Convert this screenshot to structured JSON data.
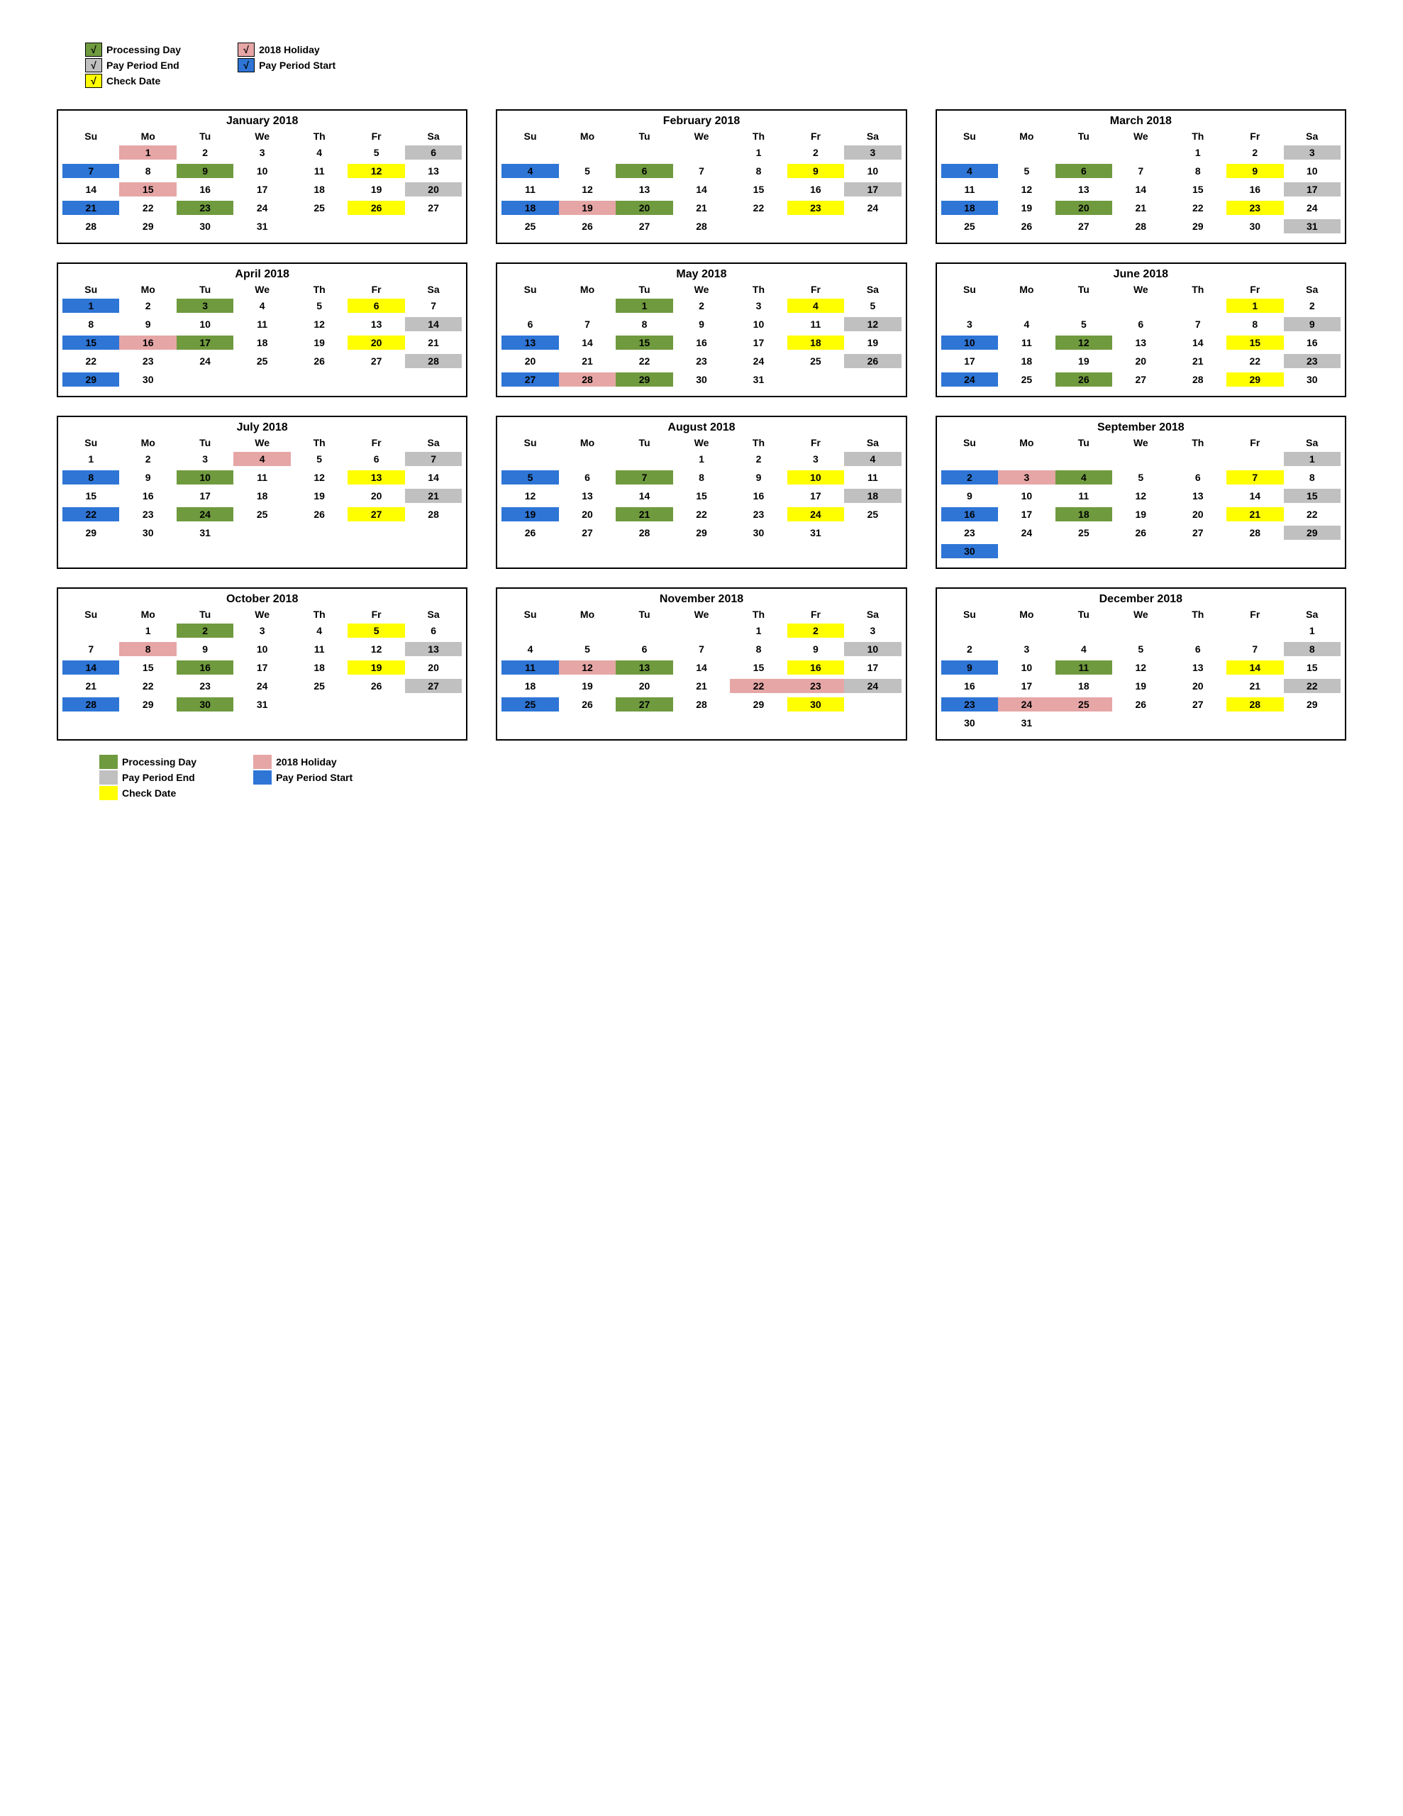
{
  "colors": {
    "processing": "#6f9a3e",
    "periodEnd": "#c0c0c0",
    "checkDate": "#ffff00",
    "holiday": "#e6a6a6",
    "periodStart": "#2e75d6",
    "text": "#000000"
  },
  "legendTop": {
    "col1": [
      {
        "label": "Processing Day",
        "colorKey": "processing",
        "check": "√"
      },
      {
        "label": "Pay Period End",
        "colorKey": "periodEnd",
        "check": "√"
      },
      {
        "label": "Check Date",
        "colorKey": "checkDate",
        "check": "√"
      }
    ],
    "col2": [
      {
        "label": "2018 Holiday",
        "colorKey": "holiday",
        "check": "√"
      },
      {
        "label": "Pay Period Start",
        "colorKey": "periodStart",
        "check": "√"
      }
    ]
  },
  "legendBottom": {
    "col1": [
      {
        "label": "Processing Day",
        "colorKey": "processing"
      },
      {
        "label": "Pay Period End",
        "colorKey": "periodEnd"
      },
      {
        "label": "Check Date",
        "colorKey": "checkDate"
      }
    ],
    "col2": [
      {
        "label": "2018 Holiday",
        "colorKey": "holiday"
      },
      {
        "label": "Pay Period Start",
        "colorKey": "periodStart"
      }
    ]
  },
  "weekdays": [
    "Su",
    "Mo",
    "Tu",
    "We",
    "Th",
    "Fr",
    "Sa"
  ],
  "months": [
    {
      "title": "January 2018",
      "start": 1,
      "days": 31,
      "colors": {
        "1": "holiday",
        "6": "periodEnd",
        "7": "periodStart",
        "9": "processing",
        "12": "checkDate",
        "15": "holiday",
        "20": "periodEnd",
        "21": "periodStart",
        "23": "processing",
        "26": "checkDate"
      }
    },
    {
      "title": "February 2018",
      "start": 4,
      "days": 28,
      "colors": {
        "3": "periodEnd",
        "4": "periodStart",
        "6": "processing",
        "9": "checkDate",
        "17": "periodEnd",
        "18": "periodStart",
        "19": "holiday",
        "20": "processing",
        "23": "checkDate"
      }
    },
    {
      "title": "March 2018",
      "start": 4,
      "days": 31,
      "colors": {
        "3": "periodEnd",
        "4": "periodStart",
        "6": "processing",
        "9": "checkDate",
        "17": "periodEnd",
        "18": "periodStart",
        "20": "processing",
        "23": "checkDate",
        "31": "periodEnd"
      }
    },
    {
      "title": "April 2018",
      "start": 0,
      "days": 30,
      "colors": {
        "1": "periodStart",
        "3": "processing",
        "6": "checkDate",
        "14": "periodEnd",
        "15": "periodStart",
        "16": "holiday",
        "17": "processing",
        "20": "checkDate",
        "28": "periodEnd",
        "29": "periodStart"
      }
    },
    {
      "title": "May 2018",
      "start": 2,
      "days": 31,
      "colors": {
        "1": "processing",
        "4": "checkDate",
        "12": "periodEnd",
        "13": "periodStart",
        "15": "processing",
        "18": "checkDate",
        "26": "periodEnd",
        "27": "periodStart",
        "28": "holiday",
        "29": "processing"
      }
    },
    {
      "title": "June 2018",
      "start": 5,
      "days": 30,
      "colors": {
        "1": "checkDate",
        "9": "periodEnd",
        "10": "periodStart",
        "12": "processing",
        "15": "checkDate",
        "23": "periodEnd",
        "24": "periodStart",
        "26": "processing",
        "29": "checkDate"
      }
    },
    {
      "title": "July 2018",
      "start": 0,
      "days": 31,
      "colors": {
        "4": "holiday",
        "7": "periodEnd",
        "8": "periodStart",
        "10": "processing",
        "13": "checkDate",
        "21": "periodEnd",
        "22": "periodStart",
        "24": "processing",
        "27": "checkDate"
      }
    },
    {
      "title": "August 2018",
      "start": 3,
      "days": 31,
      "colors": {
        "4": "periodEnd",
        "5": "periodStart",
        "7": "processing",
        "10": "checkDate",
        "18": "periodEnd",
        "19": "periodStart",
        "21": "processing",
        "24": "checkDate"
      }
    },
    {
      "title": "September 2018",
      "start": 6,
      "days": 30,
      "colors": {
        "1": "periodEnd",
        "2": "periodStart",
        "3": "holiday",
        "4": "processing",
        "7": "checkDate",
        "15": "periodEnd",
        "16": "periodStart",
        "18": "processing",
        "21": "checkDate",
        "29": "periodEnd",
        "30": "periodStart"
      }
    },
    {
      "title": "October 2018",
      "start": 1,
      "days": 31,
      "colors": {
        "2": "processing",
        "5": "checkDate",
        "8": "holiday",
        "13": "periodEnd",
        "14": "periodStart",
        "16": "processing",
        "19": "checkDate",
        "27": "periodEnd",
        "28": "periodStart",
        "30": "processing"
      }
    },
    {
      "title": "November 2018",
      "start": 4,
      "days": 30,
      "colors": {
        "2": "checkDate",
        "10": "periodEnd",
        "11": "periodStart",
        "12": "holiday",
        "13": "processing",
        "16": "checkDate",
        "22": "holiday",
        "23": "holiday",
        "24": "periodEnd",
        "25": "periodStart",
        "27": "processing",
        "30": "checkDate"
      }
    },
    {
      "title": "December 2018",
      "start": 6,
      "days": 31,
      "colors": {
        "8": "periodEnd",
        "9": "periodStart",
        "11": "processing",
        "14": "checkDate",
        "22": "periodEnd",
        "23": "periodStart",
        "24": "holiday",
        "25": "holiday",
        "28": "checkDate"
      }
    }
  ]
}
